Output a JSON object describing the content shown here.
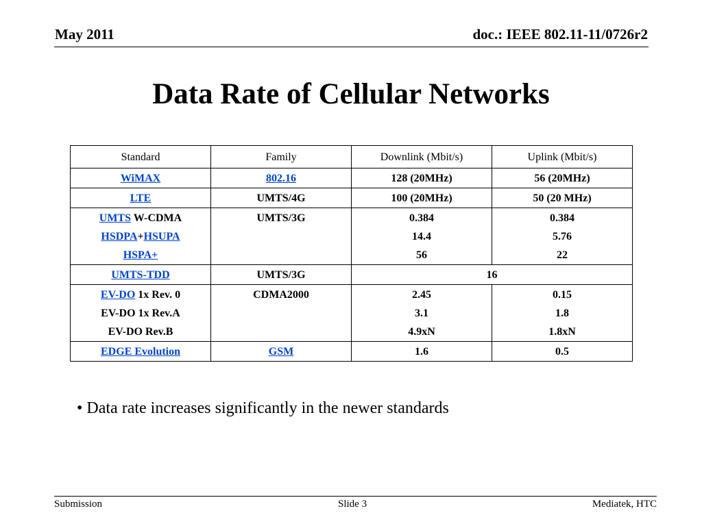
{
  "header": {
    "date": "May 2011",
    "doc_id": "doc.: IEEE 802.11-11/0726r2"
  },
  "title": "Data Rate of Cellular Networks",
  "table": {
    "columns": [
      "Standard",
      "Family",
      "Downlink (Mbit/s)",
      "Uplink (Mbit/s)"
    ],
    "rows": [
      {
        "standard": [
          [
            {
              "text": "WiMAX",
              "link": true
            }
          ]
        ],
        "family": [
          [
            {
              "text": "802.16",
              "link": true
            }
          ]
        ],
        "downlink": [
          "128 (20MHz)"
        ],
        "uplink": [
          "56 (20MHz)"
        ]
      },
      {
        "standard": [
          [
            {
              "text": "LTE",
              "link": true
            }
          ]
        ],
        "family": [
          [
            {
              "text": "UMTS/4G",
              "link": false
            }
          ]
        ],
        "downlink": [
          "100 (20MHz)"
        ],
        "uplink": [
          "50 (20 MHz)"
        ]
      },
      {
        "standard": [
          [
            {
              "text": "UMTS",
              "link": true
            },
            {
              "text": " W-CDMA",
              "link": false
            }
          ],
          [
            {
              "text": "HSDPA",
              "link": true
            },
            {
              "text": "+",
              "link": false
            },
            {
              "text": "HSUPA",
              "link": true
            }
          ],
          [
            {
              "text": "HSPA+",
              "link": true
            }
          ]
        ],
        "family": [
          [
            {
              "text": "UMTS/3G",
              "link": false
            }
          ]
        ],
        "downlink": [
          "0.384",
          "14.4",
          "56"
        ],
        "uplink": [
          "0.384",
          "5.76",
          "22"
        ]
      },
      {
        "standard": [
          [
            {
              "text": "UMTS-TDD",
              "link": true
            }
          ]
        ],
        "family": [
          [
            {
              "text": "UMTS/3G",
              "link": false
            }
          ]
        ],
        "merged": "16"
      },
      {
        "standard": [
          [
            {
              "text": "EV-DO",
              "link": true
            },
            {
              "text": " 1x Rev. 0",
              "link": false
            }
          ],
          [
            {
              "text": "EV-DO 1x Rev.A",
              "link": false
            }
          ],
          [
            {
              "text": "EV-DO Rev.B",
              "link": false
            }
          ]
        ],
        "family": [
          [
            {
              "text": "CDMA2000",
              "link": false
            }
          ]
        ],
        "downlink": [
          "2.45",
          "3.1",
          "4.9xN"
        ],
        "uplink": [
          "0.15",
          "1.8",
          "1.8xN"
        ]
      },
      {
        "standard": [
          [
            {
              "text": "EDGE Evolution",
              "link": true
            }
          ]
        ],
        "family": [
          [
            {
              "text": "GSM",
              "link": true
            }
          ]
        ],
        "downlink": [
          "1.6"
        ],
        "uplink": [
          "0.5"
        ]
      }
    ]
  },
  "bullet": "• Data rate increases significantly in the newer standards",
  "footer": {
    "left": "Submission",
    "center": "Slide 3",
    "right": "Mediatek, HTC"
  },
  "colors": {
    "link": "#0044cc",
    "text": "#000000",
    "background": "#ffffff"
  }
}
